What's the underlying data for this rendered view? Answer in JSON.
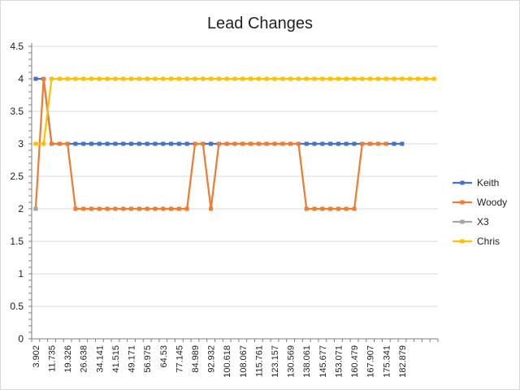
{
  "chart_data": {
    "type": "line",
    "title": "Lead Changes",
    "xlabel": "",
    "ylabel": "",
    "ylim": [
      0,
      4.5
    ],
    "yticks": [
      "0",
      "0.5",
      "1",
      "1.5",
      "2",
      "2.5",
      "3",
      "3.5",
      "4",
      "4.5"
    ],
    "x_tick_labels": [
      "3.902",
      "11.735",
      "19.326",
      "26.638",
      "34.141",
      "41.515",
      "49.171",
      "56.975",
      "64.53",
      "77.145",
      "84.989",
      "92.932",
      "100.618",
      "108.067",
      "115.761",
      "123.157",
      "130.569",
      "138.061",
      "145.677",
      "153.071",
      "160.479",
      "167.907",
      "175.341",
      "182.879"
    ],
    "grid": true,
    "legend_position": "right",
    "series": [
      {
        "name": "Keith",
        "color": "#4472c4",
        "values": [
          4,
          4,
          3,
          3,
          3,
          3,
          3,
          3,
          3,
          3,
          3,
          3,
          3,
          3,
          3,
          3,
          3,
          3,
          3,
          3,
          3,
          3,
          3,
          3,
          3,
          3,
          3,
          3,
          3,
          3,
          3,
          3,
          3,
          3,
          3,
          3,
          3,
          3,
          3,
          3,
          3,
          3,
          3,
          3,
          3,
          3,
          3
        ]
      },
      {
        "name": "Woody",
        "color": "#ed7d31",
        "values": [
          2,
          4,
          3,
          3,
          3,
          2,
          2,
          2,
          2,
          2,
          2,
          2,
          2,
          2,
          2,
          2,
          2,
          2,
          2,
          2,
          3,
          3,
          2,
          3,
          3,
          3,
          3,
          3,
          3,
          3,
          3,
          3,
          3,
          3,
          2,
          2,
          2,
          2,
          2,
          2,
          2,
          3,
          3,
          3,
          3
        ]
      },
      {
        "name": "X3",
        "color": "#a5a5a5",
        "values": [
          2
        ]
      },
      {
        "name": "Chris",
        "color": "#ffc000",
        "values": [
          3,
          3,
          4,
          4,
          4,
          4,
          4,
          4,
          4,
          4,
          4,
          4,
          4,
          4,
          4,
          4,
          4,
          4,
          4,
          4,
          4,
          4,
          4,
          4,
          4,
          4,
          4,
          4,
          4,
          4,
          4,
          4,
          4,
          4,
          4,
          4,
          4,
          4,
          4,
          4,
          4,
          4,
          4,
          4,
          4,
          4,
          4,
          4,
          4,
          4,
          4
        ]
      }
    ]
  }
}
